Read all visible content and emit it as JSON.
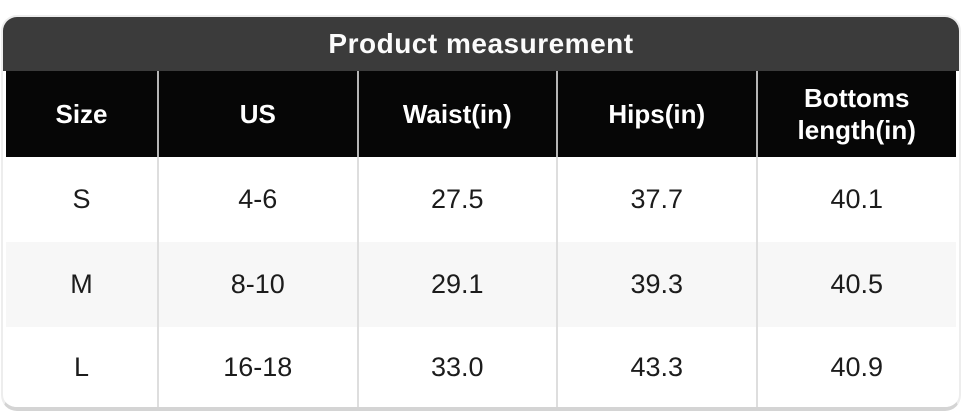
{
  "table": {
    "title": "Product measurement",
    "columns": [
      "Size",
      "US",
      "Waist(in)",
      "Hips(in)",
      "Bottoms length(in)"
    ],
    "rows": [
      [
        "S",
        "4-6",
        "27.5",
        "37.7",
        "40.1"
      ],
      [
        "M",
        "8-10",
        "29.1",
        "39.3",
        "40.5"
      ],
      [
        "L",
        "16-18",
        "33.0",
        "43.3",
        "40.9"
      ]
    ]
  },
  "colors": {
    "title_bar_bg": "#3b3b3b",
    "header_row_bg": "#060606",
    "header_text": "#ffffff",
    "alt_row_bg": "#f7f7f7",
    "body_text": "#1c1c1c",
    "divider": "#dedede",
    "card_border": "#ededed"
  }
}
